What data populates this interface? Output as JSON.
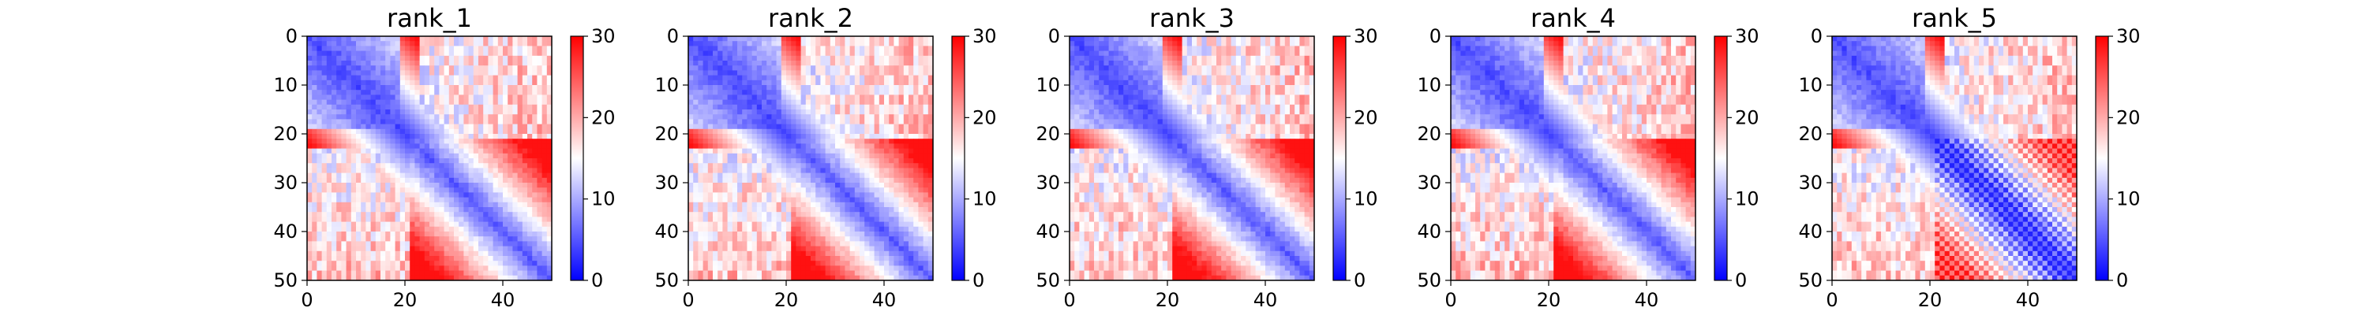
{
  "figure": {
    "colormap": "bwr",
    "colors": {
      "low": "#0000ff",
      "mid": "#ffffff",
      "high": "#ff0000",
      "frame": "#000000"
    }
  },
  "chart_data": [
    {
      "type": "heatmap",
      "title": "rank_1",
      "xlim": [
        0,
        50
      ],
      "ylim": [
        50,
        0
      ],
      "x_ticks": [
        0,
        20,
        40
      ],
      "y_ticks": [
        0,
        10,
        20,
        30,
        40,
        50
      ],
      "colorbar": {
        "range": [
          0,
          30
        ],
        "ticks": [
          0,
          10,
          20,
          30
        ]
      }
    },
    {
      "type": "heatmap",
      "title": "rank_2",
      "xlim": [
        0,
        50
      ],
      "ylim": [
        50,
        0
      ],
      "x_ticks": [
        0,
        20,
        40
      ],
      "y_ticks": [
        0,
        10,
        20,
        30,
        40,
        50
      ],
      "colorbar": {
        "range": [
          0,
          30
        ],
        "ticks": [
          0,
          10,
          20,
          30
        ]
      }
    },
    {
      "type": "heatmap",
      "title": "rank_3",
      "xlim": [
        0,
        50
      ],
      "ylim": [
        50,
        0
      ],
      "x_ticks": [
        0,
        20,
        40
      ],
      "y_ticks": [
        0,
        10,
        20,
        30,
        40,
        50
      ],
      "colorbar": {
        "range": [
          0,
          30
        ],
        "ticks": [
          0,
          10,
          20,
          30
        ]
      }
    },
    {
      "type": "heatmap",
      "title": "rank_4",
      "xlim": [
        0,
        50
      ],
      "ylim": [
        50,
        0
      ],
      "x_ticks": [
        0,
        20,
        40
      ],
      "y_ticks": [
        0,
        10,
        20,
        30,
        40,
        50
      ],
      "colorbar": {
        "range": [
          0,
          30
        ],
        "ticks": [
          0,
          10,
          20,
          30
        ]
      }
    },
    {
      "type": "heatmap",
      "title": "rank_5",
      "xlim": [
        0,
        50
      ],
      "ylim": [
        50,
        0
      ],
      "x_ticks": [
        0,
        20,
        40
      ],
      "y_ticks": [
        0,
        10,
        20,
        30,
        40,
        50
      ],
      "colorbar": {
        "range": [
          0,
          30
        ],
        "ticks": [
          0,
          10,
          20,
          30
        ]
      }
    }
  ]
}
